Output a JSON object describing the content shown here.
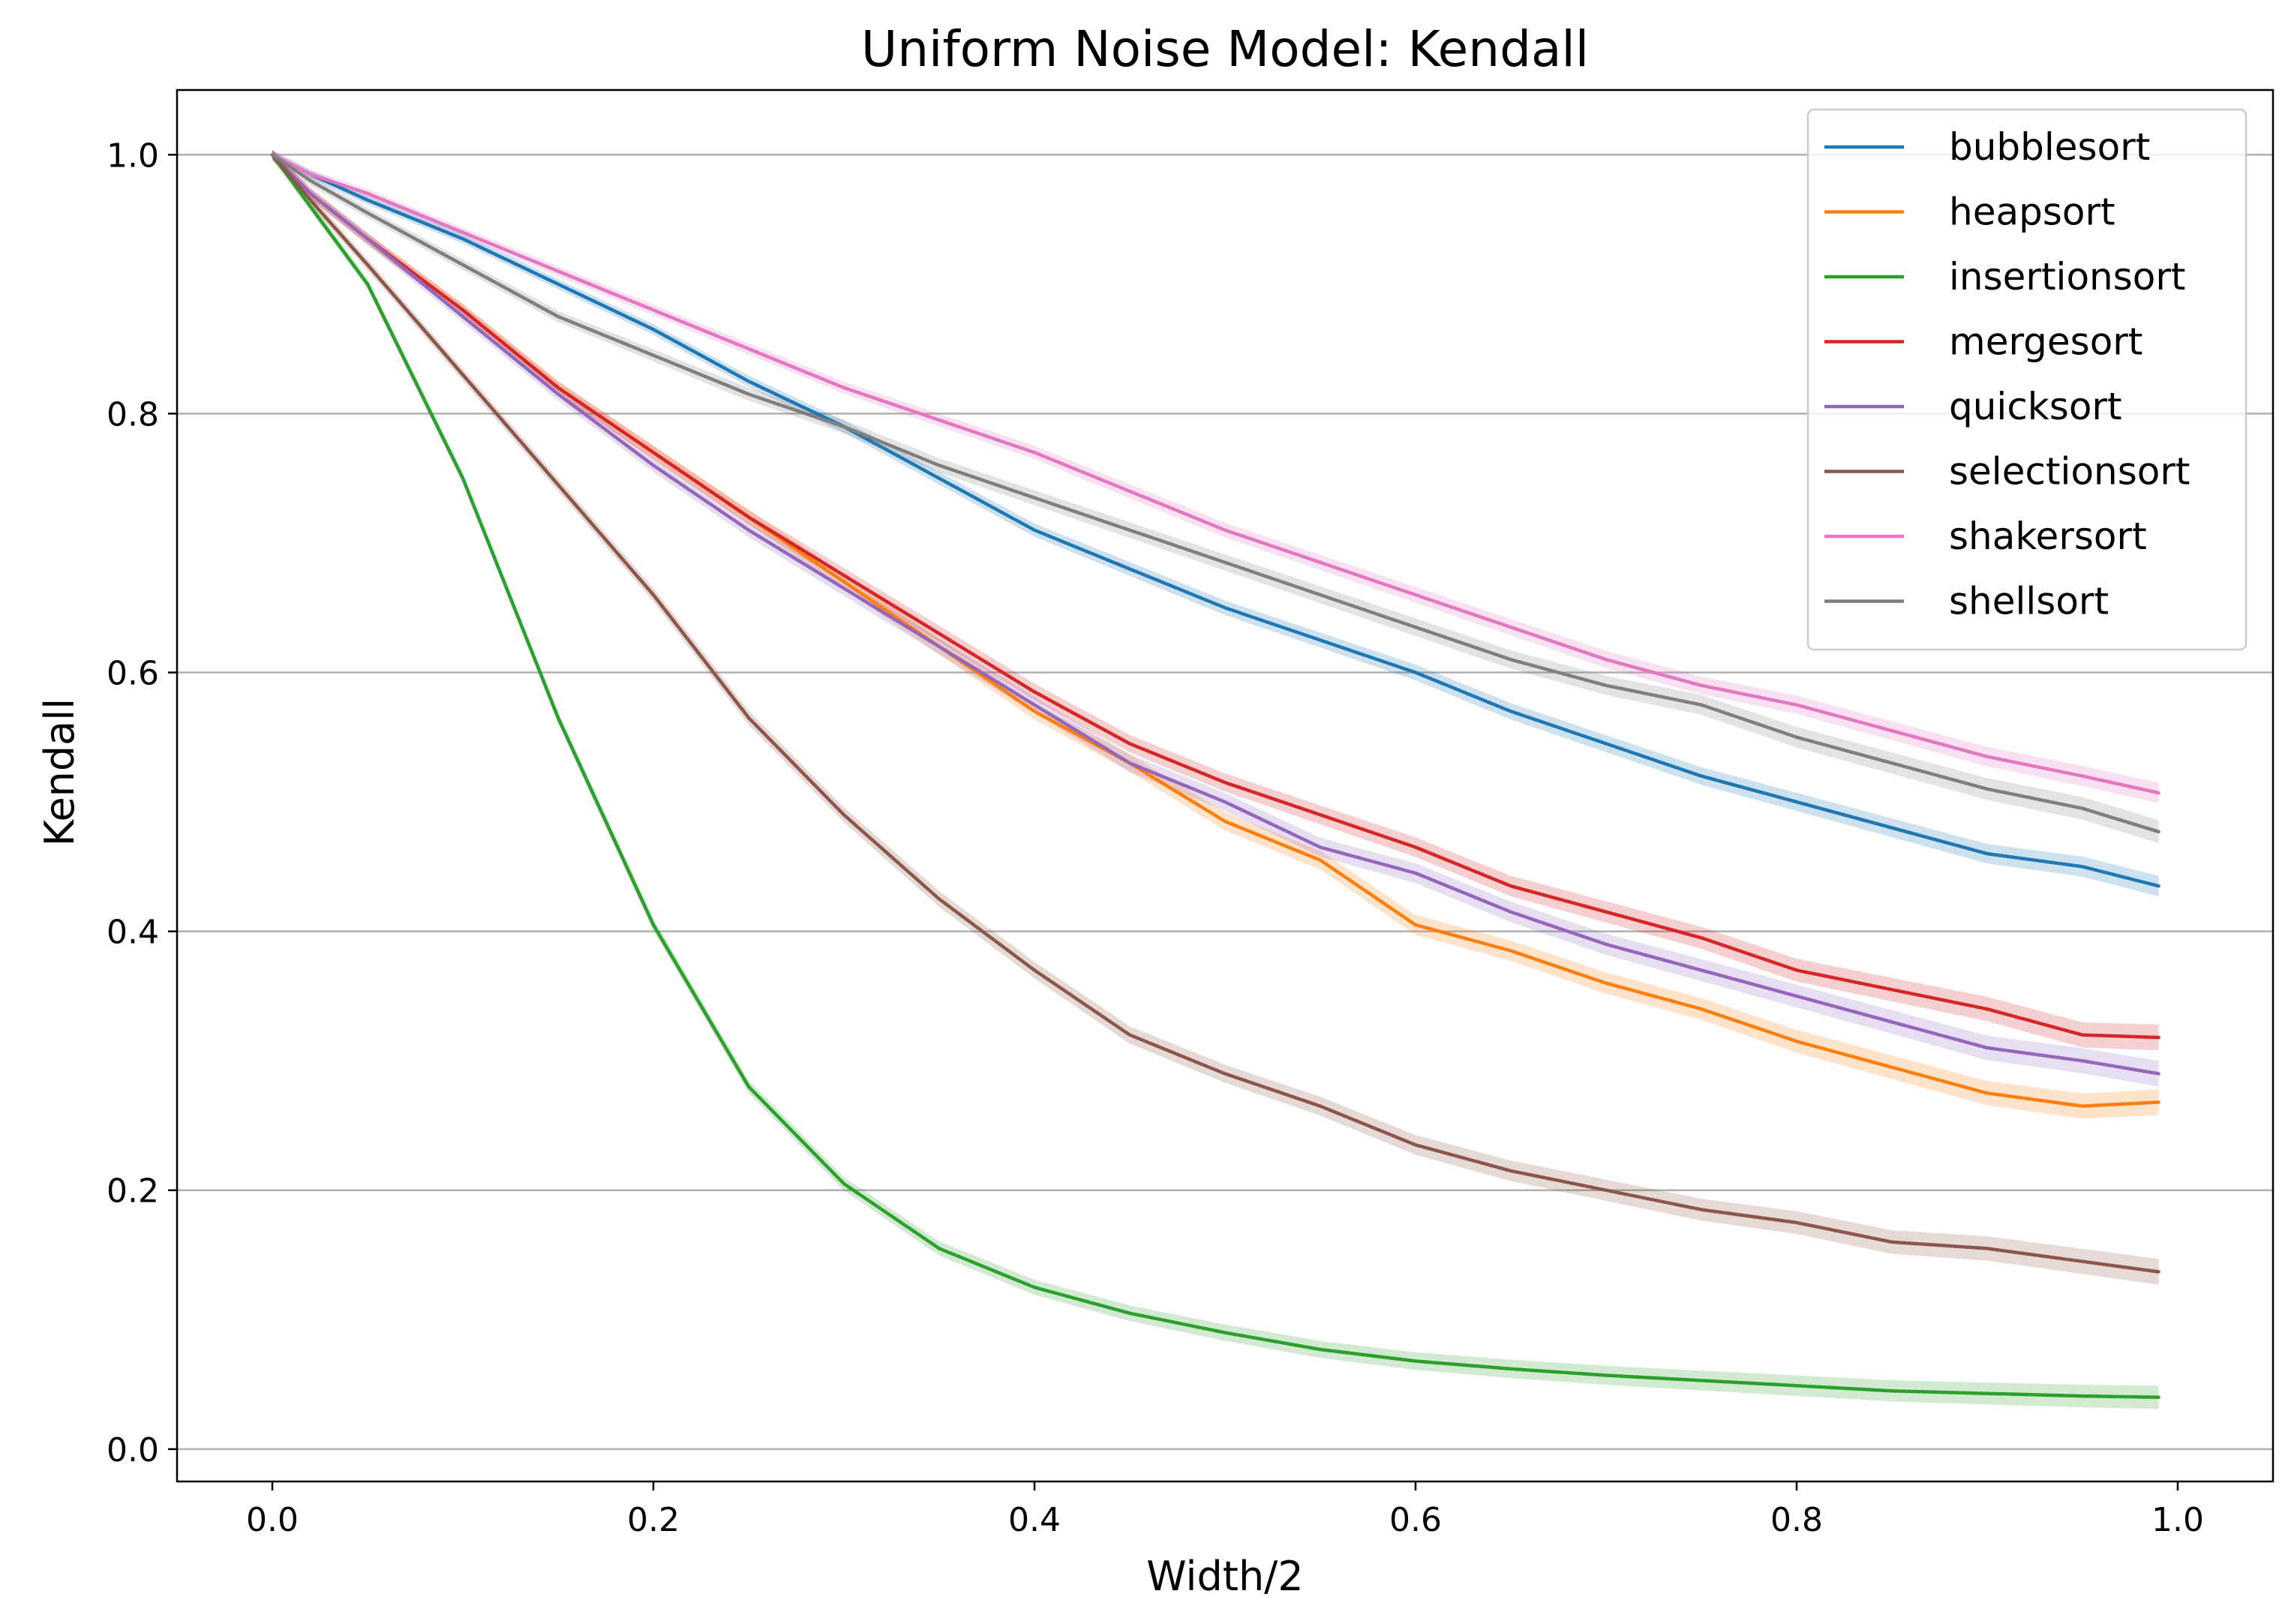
{
  "chart_data": {
    "type": "line",
    "title": "Uniform Noise Model: Kendall",
    "xlabel": "Width/2",
    "ylabel": "Kendall",
    "xlim": [
      -0.05,
      1.05
    ],
    "ylim": [
      -0.025,
      1.05
    ],
    "x_ticks": [
      0.0,
      0.2,
      0.4,
      0.6,
      0.8,
      1.0
    ],
    "x_tick_labels": [
      "0.0",
      "0.2",
      "0.4",
      "0.6",
      "0.8",
      "1.0"
    ],
    "y_ticks": [
      0.0,
      0.2,
      0.4,
      0.6,
      0.8,
      1.0
    ],
    "y_tick_labels": [
      "0.0",
      "0.2",
      "0.4",
      "0.6",
      "0.8",
      "1.0"
    ],
    "grid": "horizontal",
    "legend_position": "top-right",
    "confidence_band": true,
    "x": [
      0.0,
      0.02,
      0.05,
      0.1,
      0.15,
      0.2,
      0.25,
      0.3,
      0.35,
      0.4,
      0.45,
      0.5,
      0.55,
      0.6,
      0.65,
      0.7,
      0.75,
      0.8,
      0.85,
      0.9,
      0.95,
      0.99
    ],
    "series": [
      {
        "name": "bubblesort",
        "color": "#1f77b4",
        "band": 0.008,
        "values": [
          1.0,
          0.985,
          0.965,
          0.935,
          0.9,
          0.865,
          0.825,
          0.79,
          0.75,
          0.71,
          0.68,
          0.65,
          0.625,
          0.6,
          0.57,
          0.545,
          0.52,
          0.5,
          0.48,
          0.46,
          0.45,
          0.435
        ]
      },
      {
        "name": "heapsort",
        "color": "#ff7f0e",
        "band": 0.01,
        "values": [
          1.0,
          0.97,
          0.935,
          0.88,
          0.82,
          0.77,
          0.72,
          0.67,
          0.62,
          0.57,
          0.53,
          0.485,
          0.455,
          0.405,
          0.385,
          0.36,
          0.34,
          0.315,
          0.295,
          0.275,
          0.265,
          0.268
        ]
      },
      {
        "name": "insertionsort",
        "color": "#2ca02c",
        "band": 0.009,
        "values": [
          1.0,
          0.96,
          0.9,
          0.75,
          0.565,
          0.405,
          0.28,
          0.205,
          0.155,
          0.125,
          0.105,
          0.09,
          0.077,
          0.068,
          0.062,
          0.057,
          0.053,
          0.049,
          0.045,
          0.043,
          0.041,
          0.04
        ]
      },
      {
        "name": "mergesort",
        "color": "#d62728",
        "band": 0.01,
        "values": [
          1.0,
          0.97,
          0.935,
          0.88,
          0.82,
          0.77,
          0.72,
          0.675,
          0.63,
          0.585,
          0.545,
          0.515,
          0.49,
          0.465,
          0.435,
          0.415,
          0.395,
          0.37,
          0.355,
          0.34,
          0.32,
          0.318
        ]
      },
      {
        "name": "quicksort",
        "color": "#9467bd",
        "band": 0.01,
        "values": [
          1.0,
          0.97,
          0.935,
          0.875,
          0.815,
          0.76,
          0.71,
          0.665,
          0.62,
          0.575,
          0.53,
          0.5,
          0.465,
          0.445,
          0.415,
          0.39,
          0.37,
          0.35,
          0.33,
          0.31,
          0.3,
          0.29
        ]
      },
      {
        "name": "selectionsort",
        "color": "#8c564b",
        "band": 0.01,
        "values": [
          1.0,
          0.965,
          0.915,
          0.83,
          0.745,
          0.66,
          0.565,
          0.49,
          0.425,
          0.37,
          0.32,
          0.29,
          0.265,
          0.235,
          0.215,
          0.2,
          0.185,
          0.175,
          0.16,
          0.155,
          0.145,
          0.137
        ]
      },
      {
        "name": "shakersort",
        "color": "#e377c2",
        "band": 0.008,
        "values": [
          1.0,
          0.985,
          0.97,
          0.94,
          0.91,
          0.88,
          0.85,
          0.82,
          0.795,
          0.77,
          0.74,
          0.71,
          0.685,
          0.66,
          0.635,
          0.61,
          0.59,
          0.575,
          0.555,
          0.535,
          0.52,
          0.507
        ]
      },
      {
        "name": "shellsort",
        "color": "#7f7f7f",
        "band": 0.009,
        "values": [
          1.0,
          0.98,
          0.955,
          0.915,
          0.875,
          0.845,
          0.815,
          0.79,
          0.76,
          0.735,
          0.71,
          0.685,
          0.66,
          0.635,
          0.61,
          0.59,
          0.575,
          0.55,
          0.53,
          0.51,
          0.495,
          0.477
        ]
      }
    ]
  }
}
